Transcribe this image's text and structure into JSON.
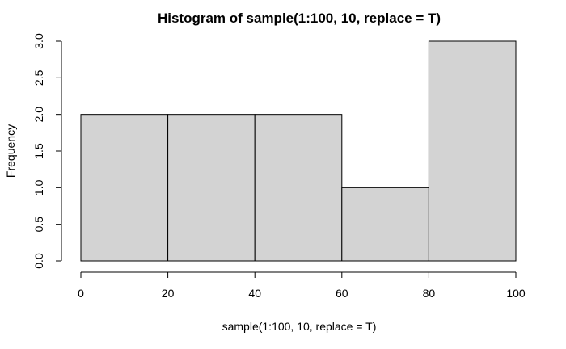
{
  "chart_data": {
    "type": "bar",
    "title": "Histogram of sample(1:100, 10, replace = T)",
    "xlabel": "sample(1:100, 10, replace = T)",
    "ylabel": "Frequency",
    "bins": [
      {
        "start": 0,
        "end": 20,
        "count": 2
      },
      {
        "start": 20,
        "end": 40,
        "count": 2
      },
      {
        "start": 40,
        "end": 60,
        "count": 2
      },
      {
        "start": 60,
        "end": 80,
        "count": 1
      },
      {
        "start": 80,
        "end": 100,
        "count": 3
      }
    ],
    "xlim": [
      0,
      100
    ],
    "ylim": [
      0,
      3
    ],
    "x_ticks": [
      "0",
      "20",
      "40",
      "60",
      "80",
      "100"
    ],
    "y_ticks": [
      "0.0",
      "0.5",
      "1.0",
      "1.5",
      "2.0",
      "2.5",
      "3.0"
    ],
    "bar_color": "#d3d3d3",
    "grid": false
  }
}
